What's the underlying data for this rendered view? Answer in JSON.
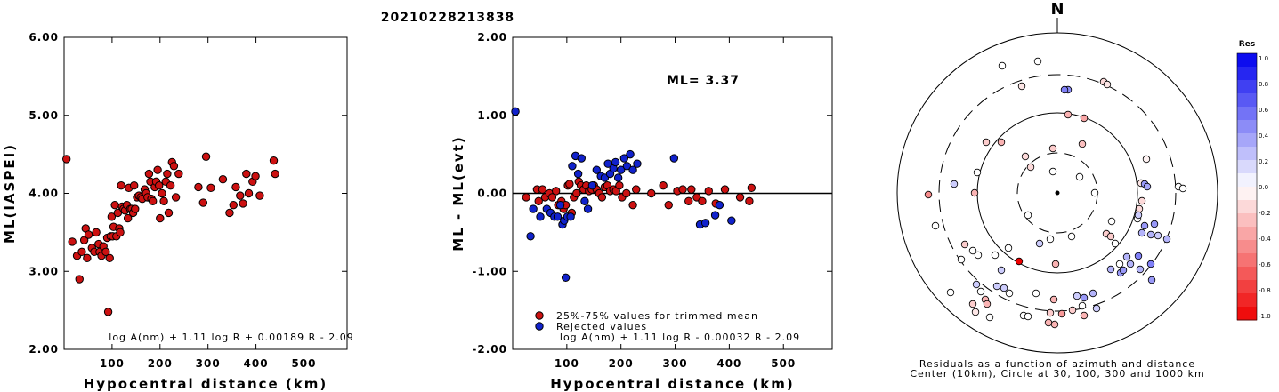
{
  "figure_title": "20210228213838",
  "chart_data": [
    {
      "type": "scatter",
      "id": "ml-vs-distance",
      "xlabel": "Hypocentral distance (km)",
      "ylabel": "ML(IASPEI)",
      "xlim": [
        0,
        590
      ],
      "ylim": [
        2.0,
        6.0
      ],
      "xticks": [
        "100",
        "200",
        "300",
        "400",
        "500"
      ],
      "yticks": [
        "2.00",
        "3.00",
        "4.00",
        "5.00",
        "6.00"
      ],
      "annotation": "log A(nm) + 1.11 log R + 0.00189 R - 2.09",
      "color": "#cc1111",
      "points": [
        [
          5,
          4.44
        ],
        [
          17,
          3.38
        ],
        [
          27,
          3.2
        ],
        [
          32,
          2.9
        ],
        [
          37,
          3.25
        ],
        [
          42,
          3.4
        ],
        [
          45,
          3.55
        ],
        [
          48,
          3.17
        ],
        [
          51,
          3.47
        ],
        [
          58,
          3.3
        ],
        [
          63,
          3.25
        ],
        [
          67,
          3.5
        ],
        [
          72,
          3.35
        ],
        [
          74,
          3.25
        ],
        [
          78,
          3.2
        ],
        [
          82,
          3.32
        ],
        [
          87,
          3.25
        ],
        [
          90,
          3.43
        ],
        [
          92,
          2.48
        ],
        [
          95,
          3.17
        ],
        [
          97,
          3.45
        ],
        [
          99,
          3.7
        ],
        [
          101,
          3.45
        ],
        [
          103,
          3.57
        ],
        [
          106,
          3.85
        ],
        [
          109,
          3.45
        ],
        [
          112,
          3.75
        ],
        [
          115,
          3.55
        ],
        [
          117,
          3.5
        ],
        [
          119,
          4.1
        ],
        [
          121,
          3.83
        ],
        [
          124,
          3.8
        ],
        [
          127,
          3.78
        ],
        [
          131,
          3.85
        ],
        [
          133,
          3.68
        ],
        [
          135,
          4.07
        ],
        [
          138,
          3.8
        ],
        [
          141,
          3.8
        ],
        [
          144,
          3.75
        ],
        [
          146,
          4.1
        ],
        [
          148,
          3.8
        ],
        [
          152,
          3.95
        ],
        [
          156,
          3.97
        ],
        [
          160,
          3.95
        ],
        [
          163,
          3.93
        ],
        [
          168,
          4.05
        ],
        [
          171,
          4.0
        ],
        [
          174,
          3.95
        ],
        [
          177,
          4.25
        ],
        [
          180,
          4.15
        ],
        [
          182,
          3.93
        ],
        [
          185,
          3.9
        ],
        [
          189,
          4.08
        ],
        [
          192,
          4.15
        ],
        [
          195,
          4.3
        ],
        [
          198,
          4.1
        ],
        [
          200,
          3.68
        ],
        [
          204,
          4.0
        ],
        [
          208,
          3.9
        ],
        [
          212,
          4.15
        ],
        [
          215,
          4.25
        ],
        [
          218,
          3.75
        ],
        [
          222,
          4.1
        ],
        [
          225,
          4.4
        ],
        [
          229,
          4.35
        ],
        [
          233,
          3.95
        ],
        [
          239,
          4.25
        ],
        [
          280,
          4.08
        ],
        [
          290,
          3.88
        ],
        [
          296,
          4.47
        ],
        [
          306,
          4.07
        ],
        [
          331,
          4.18
        ],
        [
          345,
          3.75
        ],
        [
          353,
          3.85
        ],
        [
          358,
          4.08
        ],
        [
          367,
          3.97
        ],
        [
          373,
          3.87
        ],
        [
          380,
          4.25
        ],
        [
          385,
          4.0
        ],
        [
          393,
          4.15
        ],
        [
          399,
          4.22
        ],
        [
          408,
          3.97
        ],
        [
          437,
          4.42
        ],
        [
          440,
          4.25
        ]
      ]
    },
    {
      "type": "scatter",
      "id": "residual-vs-distance",
      "xlabel": "Hypocentral distance (km)",
      "ylabel": "ML - ML(evt)",
      "xlim": [
        0,
        590
      ],
      "ylim": [
        -2.0,
        2.0
      ],
      "xticks": [
        "100",
        "200",
        "300",
        "400",
        "500"
      ],
      "yticks": [
        "-2.00",
        "-1.00",
        "0.00",
        "1.00",
        "2.00"
      ],
      "ml_label": "ML= 3.37",
      "annotation": "log A(nm) + 1.11 log R - 0.00032 R - 2.09",
      "legend": [
        {
          "label": "25%-75% values for trimmed mean",
          "color": "#cc1111"
        },
        {
          "label": "Rejected values",
          "color": "#1122cc"
        }
      ],
      "series": [
        {
          "name": "25%-75% values for trimmed mean",
          "color": "#cc1111",
          "points": [
            [
              25,
              -0.05
            ],
            [
              45,
              0.05
            ],
            [
              48,
              -0.1
            ],
            [
              55,
              0.05
            ],
            [
              60,
              -0.05
            ],
            [
              68,
              0.0
            ],
            [
              73,
              -0.05
            ],
            [
              80,
              0.03
            ],
            [
              84,
              -0.15
            ],
            [
              90,
              -0.1
            ],
            [
              94,
              -0.2
            ],
            [
              98,
              -0.15
            ],
            [
              102,
              0.1
            ],
            [
              105,
              0.12
            ],
            [
              109,
              -0.25
            ],
            [
              113,
              -0.05
            ],
            [
              118,
              0.0
            ],
            [
              122,
              0.15
            ],
            [
              126,
              0.1
            ],
            [
              131,
              0.05
            ],
            [
              136,
              0.1
            ],
            [
              141,
              0.03
            ],
            [
              146,
              0.05
            ],
            [
              150,
              0.1
            ],
            [
              155,
              0.05
            ],
            [
              160,
              0.0
            ],
            [
              165,
              -0.05
            ],
            [
              170,
              0.08
            ],
            [
              175,
              0.1
            ],
            [
              180,
              0.03
            ],
            [
              186,
              0.05
            ],
            [
              191,
              0.03
            ],
            [
              197,
              0.1
            ],
            [
              202,
              -0.05
            ],
            [
              210,
              0.0
            ],
            [
              222,
              -0.15
            ],
            [
              228,
              0.05
            ],
            [
              256,
              0.0
            ],
            [
              278,
              0.1
            ],
            [
              288,
              -0.15
            ],
            [
              304,
              0.03
            ],
            [
              314,
              0.05
            ],
            [
              325,
              -0.1
            ],
            [
              330,
              0.05
            ],
            [
              340,
              -0.05
            ],
            [
              350,
              -0.1
            ],
            [
              362,
              0.03
            ],
            [
              375,
              -0.13
            ],
            [
              392,
              0.05
            ],
            [
              420,
              -0.05
            ],
            [
              437,
              -0.1
            ],
            [
              441,
              0.07
            ]
          ]
        },
        {
          "name": "Rejected values",
          "color": "#1122cc",
          "points": [
            [
              5,
              1.05
            ],
            [
              33,
              -0.55
            ],
            [
              38,
              -0.2
            ],
            [
              51,
              -0.3
            ],
            [
              63,
              -0.2
            ],
            [
              70,
              -0.25
            ],
            [
              77,
              -0.3
            ],
            [
              83,
              -0.3
            ],
            [
              88,
              -0.15
            ],
            [
              92,
              -0.4
            ],
            [
              95,
              -0.35
            ],
            [
              98,
              -1.08
            ],
            [
              101,
              -0.3
            ],
            [
              107,
              -0.3
            ],
            [
              110,
              0.35
            ],
            [
              116,
              0.48
            ],
            [
              121,
              0.25
            ],
            [
              127,
              0.45
            ],
            [
              133,
              -0.1
            ],
            [
              139,
              -0.2
            ],
            [
              147,
              0.1
            ],
            [
              155,
              0.3
            ],
            [
              163,
              0.22
            ],
            [
              170,
              0.2
            ],
            [
              176,
              0.38
            ],
            [
              180,
              0.25
            ],
            [
              186,
              0.32
            ],
            [
              190,
              0.4
            ],
            [
              195,
              0.2
            ],
            [
              200,
              0.3
            ],
            [
              206,
              0.45
            ],
            [
              211,
              0.35
            ],
            [
              217,
              0.5
            ],
            [
              222,
              0.3
            ],
            [
              230,
              0.38
            ],
            [
              298,
              0.45
            ],
            [
              346,
              -0.4
            ],
            [
              356,
              -0.38
            ],
            [
              374,
              -0.28
            ],
            [
              382,
              -0.15
            ],
            [
              404,
              -0.35
            ]
          ]
        }
      ]
    },
    {
      "type": "scatter",
      "id": "azimuthal-residuals",
      "north_label": "N",
      "caption": [
        "Residuals as a function of azimuth and distance",
        "Center (10km), Circle at 30, 100, 300 and 1000 km"
      ],
      "colorbar_title": "Res",
      "colorbar_ticks": [
        "1.0",
        "0.8",
        "0.6",
        "0.4",
        "0.2",
        "0.0",
        "-0.2",
        "-0.4",
        "-0.6",
        "-0.8",
        "-1.0"
      ],
      "color_positive": "#0000ee",
      "color_zero": "#ffffff",
      "color_negative": "#ee0000",
      "stations": [
        [
          -62,
          -143,
          0.0
        ],
        [
          -22,
          -148,
          0.0
        ],
        [
          -40,
          -120,
          -0.1
        ],
        [
          12,
          -116,
          0.45
        ],
        [
          8,
          -116,
          0.5
        ],
        [
          52,
          -125,
          -0.15
        ],
        [
          56,
          -122,
          -0.1
        ],
        [
          12,
          -88,
          -0.3
        ],
        [
          30,
          -84,
          -0.35
        ],
        [
          -80,
          -57,
          -0.2
        ],
        [
          -63,
          -57,
          -0.3
        ],
        [
          -5,
          -50,
          -0.2
        ],
        [
          28,
          -55,
          -0.25
        ],
        [
          100,
          -38,
          -0.05
        ],
        [
          -36,
          -41,
          -0.15
        ],
        [
          -30,
          -29,
          -0.15
        ],
        [
          -5,
          -24,
          0.0
        ],
        [
          25,
          -18,
          0.0
        ],
        [
          -90,
          -23,
          0.0
        ],
        [
          94,
          -11,
          -0.1
        ],
        [
          -145,
          2,
          -0.45
        ],
        [
          -116,
          -10,
          0.2
        ],
        [
          -93,
          0,
          -0.3
        ],
        [
          42,
          0,
          0.0
        ],
        [
          98,
          -10,
          0.4
        ],
        [
          101,
          -7,
          0.35
        ],
        [
          -33,
          25,
          0.0
        ],
        [
          61,
          32,
          0.0
        ],
        [
          92,
          18,
          -0.15
        ],
        [
          95,
          9,
          -0.15
        ],
        [
          136,
          -7,
          0.0
        ],
        [
          141,
          -5,
          0.0
        ],
        [
          -137,
          37,
          0.0
        ],
        [
          -104,
          58,
          -0.2
        ],
        [
          -89,
          70,
          0.0
        ],
        [
          -70,
          70,
          0.0
        ],
        [
          -95,
          65,
          0.0
        ],
        [
          -8,
          52,
          0.0
        ],
        [
          -20,
          57,
          0.2
        ],
        [
          16,
          49,
          0.0
        ],
        [
          -55,
          62,
          0.0
        ],
        [
          90,
          29,
          0.0
        ],
        [
          91,
          25,
          0.2
        ],
        [
          98,
          37,
          0.4
        ],
        [
          109,
          35,
          0.4
        ],
        [
          95,
          45,
          0.3
        ],
        [
          105,
          47,
          0.3
        ],
        [
          113,
          48,
          0.2
        ],
        [
          123,
          52,
          0.3
        ],
        [
          -108,
          75,
          0.0
        ],
        [
          -43,
          77,
          -1.0
        ],
        [
          -63,
          87,
          0.2
        ],
        [
          -2,
          80,
          -0.3
        ],
        [
          70,
          80,
          0.0
        ],
        [
          78,
          72,
          0.3
        ],
        [
          65,
          57,
          0.0
        ],
        [
          55,
          46,
          -0.2
        ],
        [
          60,
          49,
          -0.2
        ],
        [
          82,
          80,
          0.3
        ],
        [
          91,
          71,
          0.5
        ],
        [
          93,
          86,
          0.3
        ],
        [
          105,
          80,
          0.5
        ],
        [
          60,
          86,
          0.3
        ],
        [
          71,
          90,
          0.4
        ],
        [
          106,
          98,
          0.4
        ],
        [
          74,
          87,
          0.4
        ],
        [
          -91,
          103,
          0.2
        ],
        [
          -68,
          105,
          0.2
        ],
        [
          -60,
          107,
          0.2
        ],
        [
          -86,
          111,
          0.0
        ],
        [
          -120,
          112,
          0.0
        ],
        [
          -54,
          113,
          0.0
        ],
        [
          -24,
          113,
          0.0
        ],
        [
          -4,
          120,
          -0.3
        ],
        [
          22,
          116,
          0.2
        ],
        [
          30,
          118,
          0.4
        ],
        [
          40,
          113,
          0.3
        ],
        [
          44,
          130,
          0.2
        ],
        [
          17,
          132,
          -0.2
        ],
        [
          -8,
          135,
          -0.2
        ],
        [
          5,
          136,
          -0.4
        ],
        [
          -38,
          138,
          0.0
        ],
        [
          -81,
          120,
          -0.3
        ],
        [
          -79,
          125,
          -0.3
        ],
        [
          -10,
          146,
          -0.3
        ],
        [
          28,
          127,
          0.0
        ],
        [
          30,
          138,
          -0.3
        ],
        [
          -3,
          148,
          -0.3
        ],
        [
          -33,
          139,
          0.0
        ],
        [
          -95,
          125,
          -0.2
        ],
        [
          -92,
          134,
          -0.1
        ],
        [
          -76,
          140,
          0.0
        ]
      ]
    }
  ]
}
